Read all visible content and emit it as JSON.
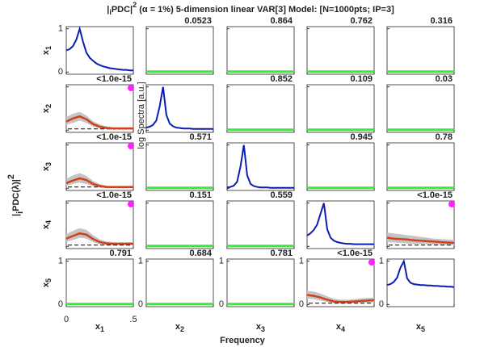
{
  "chart_data": {
    "type": "pdc-matrix",
    "title_parts": [
      "|",
      "i",
      "PDC|",
      "2",
      " (α = 1%) 5-dimension linear VAR[3] Model: [N=1000pts; IP=3]"
    ],
    "ylabel_parts": [
      "|",
      "i",
      "PDC(λ)|",
      "2"
    ],
    "xlabel": "Frequency",
    "diag_label": "log Spectra [a.u.]",
    "var_base": "x",
    "var_subs": [
      "1",
      "2",
      "3",
      "4",
      "5"
    ],
    "xlim": [
      0,
      0.5
    ],
    "xticks": [
      0,
      {
        "value": 0.5,
        "label": ".5"
      }
    ],
    "ylim": [
      -0.05,
      1.05
    ],
    "yticks": [
      0,
      1
    ],
    "spectra_x": [
      0,
      0.025,
      0.05,
      0.075,
      0.1,
      0.125,
      0.15,
      0.175,
      0.2,
      0.225,
      0.25,
      0.275,
      0.3,
      0.325,
      0.35,
      0.375,
      0.4,
      0.425,
      0.45,
      0.475,
      0.5
    ],
    "spectra": [
      [
        0.5,
        0.53,
        0.6,
        0.75,
        1.0,
        0.7,
        0.45,
        0.33,
        0.26,
        0.2,
        0.16,
        0.13,
        0.11,
        0.09,
        0.08,
        0.07,
        0.06,
        0.05,
        0.05,
        0.04,
        0.04
      ],
      [
        0.06,
        0.08,
        0.12,
        0.22,
        0.55,
        1.0,
        0.35,
        0.15,
        0.09,
        0.06,
        0.05,
        0.04,
        0.04,
        0.04,
        0.03,
        0.03,
        0.03,
        0.03,
        0.03,
        0.03,
        0.03
      ],
      [
        0.02,
        0.03,
        0.06,
        0.15,
        0.5,
        1.0,
        0.3,
        0.1,
        0.05,
        0.03,
        0.02,
        0.02,
        0.02,
        0.01,
        0.01,
        0.01,
        0.01,
        0.01,
        0.01,
        0.01,
        0.01
      ],
      [
        0.25,
        0.3,
        0.38,
        0.5,
        0.75,
        1.0,
        0.4,
        0.2,
        0.13,
        0.1,
        0.08,
        0.07,
        0.06,
        0.06,
        0.05,
        0.05,
        0.05,
        0.05,
        0.05,
        0.05,
        0.05
      ],
      [
        0.45,
        0.47,
        0.52,
        0.62,
        0.85,
        1.0,
        0.6,
        0.5,
        0.47,
        0.46,
        0.45,
        0.45,
        0.44,
        0.44,
        0.43,
        0.43,
        0.42,
        0.42,
        0.41,
        0.41,
        0.4
      ]
    ],
    "pdc_x": [
      0,
      0.05,
      0.1,
      0.15,
      0.2,
      0.25,
      0.3,
      0.35,
      0.4,
      0.45,
      0.5
    ],
    "pdc": [
      [
        null,
        [
          0.01,
          0.01,
          0.01,
          0.01,
          0.01,
          0.01,
          0.01,
          0.01,
          0.01,
          0.01,
          0.01
        ],
        [
          0.01,
          0.01,
          0.01,
          0.01,
          0.01,
          0.01,
          0.01,
          0.01,
          0.01,
          0.01,
          0.01
        ],
        [
          0.01,
          0.01,
          0.01,
          0.01,
          0.01,
          0.01,
          0.01,
          0.01,
          0.01,
          0.01,
          0.01
        ],
        [
          0.01,
          0.01,
          0.01,
          0.01,
          0.01,
          0.01,
          0.01,
          0.01,
          0.01,
          0.01,
          0.01
        ]
      ],
      [
        [
          0.2,
          0.27,
          0.32,
          0.25,
          0.14,
          0.08,
          0.05,
          0.04,
          0.04,
          0.04,
          0.04
        ],
        null,
        [
          0.01,
          0.01,
          0.01,
          0.01,
          0.01,
          0.01,
          0.01,
          0.01,
          0.01,
          0.01,
          0.01
        ],
        [
          0.01,
          0.01,
          0.01,
          0.01,
          0.01,
          0.01,
          0.01,
          0.01,
          0.01,
          0.01,
          0.01
        ],
        [
          0.01,
          0.01,
          0.01,
          0.01,
          0.01,
          0.01,
          0.01,
          0.01,
          0.01,
          0.01,
          0.01
        ]
      ],
      [
        [
          0.12,
          0.18,
          0.23,
          0.19,
          0.1,
          0.05,
          0.03,
          0.03,
          0.03,
          0.03,
          0.03
        ],
        [
          0.01,
          0.01,
          0.01,
          0.01,
          0.01,
          0.01,
          0.01,
          0.01,
          0.01,
          0.01,
          0.01
        ],
        null,
        [
          0.01,
          0.01,
          0.01,
          0.01,
          0.01,
          0.01,
          0.01,
          0.01,
          0.01,
          0.01,
          0.01
        ],
        [
          0.01,
          0.01,
          0.01,
          0.01,
          0.01,
          0.01,
          0.01,
          0.01,
          0.01,
          0.01,
          0.01
        ]
      ],
      [
        [
          0.18,
          0.24,
          0.3,
          0.27,
          0.17,
          0.1,
          0.07,
          0.06,
          0.06,
          0.06,
          0.06
        ],
        [
          0.01,
          0.01,
          0.01,
          0.01,
          0.01,
          0.01,
          0.01,
          0.01,
          0.01,
          0.01,
          0.01
        ],
        [
          0.01,
          0.01,
          0.01,
          0.01,
          0.01,
          0.01,
          0.01,
          0.01,
          0.01,
          0.01,
          0.01
        ],
        null,
        [
          0.2,
          0.18,
          0.17,
          0.16,
          0.14,
          0.13,
          0.12,
          0.11,
          0.1,
          0.09,
          0.08
        ]
      ],
      [
        [
          0.01,
          0.01,
          0.01,
          0.01,
          0.01,
          0.01,
          0.01,
          0.01,
          0.01,
          0.01,
          0.01
        ],
        [
          0.01,
          0.01,
          0.01,
          0.01,
          0.01,
          0.01,
          0.01,
          0.01,
          0.01,
          0.01,
          0.01
        ],
        [
          0.01,
          0.01,
          0.01,
          0.01,
          0.01,
          0.01,
          0.01,
          0.01,
          0.01,
          0.01,
          0.01
        ],
        [
          0.22,
          0.2,
          0.16,
          0.11,
          0.07,
          0.06,
          0.06,
          0.07,
          0.08,
          0.09,
          0.1
        ],
        null
      ]
    ],
    "ci_upper": [
      [
        null,
        null,
        null,
        null,
        null
      ],
      [
        [
          0.3,
          0.38,
          0.42,
          0.34,
          0.21,
          0.13,
          0.09,
          0.07,
          0.07,
          0.07,
          0.07
        ],
        null,
        null,
        null,
        null
      ],
      [
        [
          0.22,
          0.3,
          0.35,
          0.29,
          0.17,
          0.1,
          0.06,
          0.05,
          0.05,
          0.05,
          0.05
        ],
        null,
        null,
        null,
        null
      ],
      [
        [
          0.28,
          0.36,
          0.42,
          0.38,
          0.26,
          0.16,
          0.11,
          0.1,
          0.1,
          0.1,
          0.1
        ],
        null,
        null,
        null,
        [
          0.32,
          0.3,
          0.28,
          0.26,
          0.24,
          0.22,
          0.2,
          0.18,
          0.17,
          0.16,
          0.15
        ]
      ],
      [
        null,
        null,
        null,
        [
          0.32,
          0.3,
          0.25,
          0.19,
          0.13,
          0.11,
          0.11,
          0.12,
          0.14,
          0.15,
          0.16
        ],
        null
      ]
    ],
    "ci_lower": [
      [
        null,
        null,
        null,
        null,
        null
      ],
      [
        [
          0.12,
          0.17,
          0.22,
          0.17,
          0.08,
          0.04,
          0.02,
          0.02,
          0.02,
          0.02,
          0.02
        ],
        null,
        null,
        null,
        null
      ],
      [
        [
          0.06,
          0.1,
          0.13,
          0.1,
          0.05,
          0.02,
          0.01,
          0.01,
          0.01,
          0.01,
          0.01
        ],
        null,
        null,
        null,
        null
      ],
      [
        [
          0.1,
          0.15,
          0.2,
          0.18,
          0.1,
          0.05,
          0.03,
          0.03,
          0.03,
          0.03,
          0.03
        ],
        null,
        null,
        null,
        [
          0.1,
          0.09,
          0.08,
          0.07,
          0.06,
          0.05,
          0.05,
          0.04,
          0.04,
          0.03,
          0.03
        ]
      ],
      [
        null,
        null,
        null,
        [
          0.14,
          0.12,
          0.09,
          0.06,
          0.03,
          0.02,
          0.02,
          0.03,
          0.04,
          0.04,
          0.05
        ],
        null
      ]
    ],
    "threshold": [
      [
        null,
        0.02,
        0.02,
        0.02,
        0.02
      ],
      [
        0.03,
        null,
        0.02,
        0.02,
        0.02
      ],
      [
        0.03,
        0.02,
        null,
        0.02,
        0.02
      ],
      [
        0.03,
        0.02,
        0.02,
        null,
        0.03
      ],
      [
        0.02,
        0.02,
        0.02,
        0.03,
        null
      ]
    ],
    "pvalues": [
      [
        null,
        0.0523,
        0.864,
        0.762,
        0.316
      ],
      [
        {
          "value": 1e-15,
          "label": "<1.0e-15"
        },
        null,
        0.852,
        0.109,
        0.03
      ],
      [
        {
          "value": 1e-15,
          "label": "<1.0e-15"
        },
        0.571,
        null,
        0.945,
        0.78
      ],
      [
        {
          "value": 1e-15,
          "label": "<1.0e-15"
        },
        0.151,
        0.559,
        null,
        {
          "value": 1e-15,
          "label": "<1.0e-15"
        }
      ],
      [
        0.791,
        0.684,
        0.781,
        {
          "value": 1e-15,
          "label": "<1.0e-15"
        },
        null
      ]
    ],
    "significant": [
      [
        null,
        false,
        false,
        false,
        false
      ],
      [
        true,
        null,
        false,
        false,
        false
      ],
      [
        true,
        false,
        null,
        false,
        false
      ],
      [
        true,
        false,
        false,
        null,
        true
      ],
      [
        false,
        false,
        false,
        true,
        null
      ]
    ],
    "spectra_color": "#0a1eb4",
    "pdc_significant_color": "#d2401a",
    "pdc_nonsignificant_color": "#33ee33",
    "ci_color": "#c4c4c4",
    "threshold_color": "#000000",
    "label_significant_color": "#b000b0",
    "label_nonsignificant_color": "#1c7a1c",
    "marker_color": "#ff22ff"
  }
}
